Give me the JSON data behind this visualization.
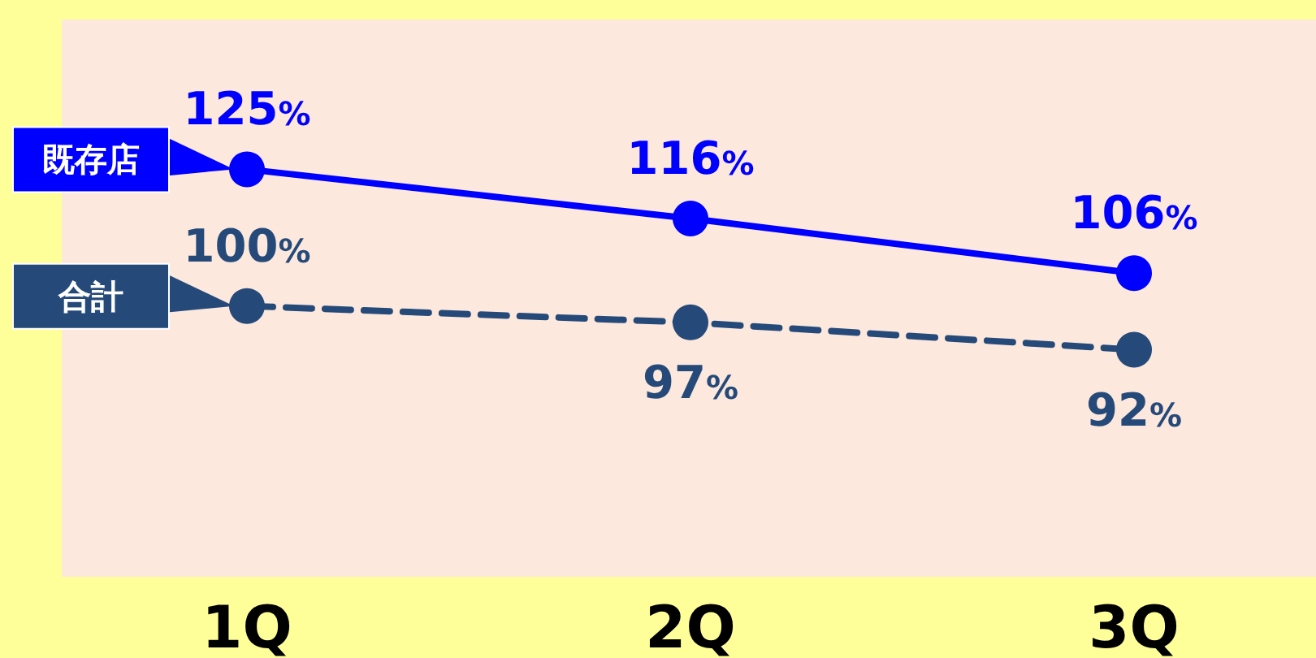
{
  "chart_data": {
    "type": "line",
    "categories": [
      "1Q",
      "2Q",
      "3Q"
    ],
    "marker": "circle",
    "grid": false,
    "legend": "left",
    "tick_labels": "x",
    "series": [
      {
        "name": "既存店",
        "color": "#0000ff",
        "values": [
          125,
          116,
          106
        ],
        "value_labels": [
          "125%",
          "116%",
          "106%"
        ],
        "line_style": "solid"
      },
      {
        "name": "合計",
        "color": "#254a7a",
        "values": [
          100,
          97,
          92
        ],
        "value_labels": [
          "100%",
          "97%",
          "92%"
        ],
        "line_style": "dashed"
      }
    ]
  }
}
